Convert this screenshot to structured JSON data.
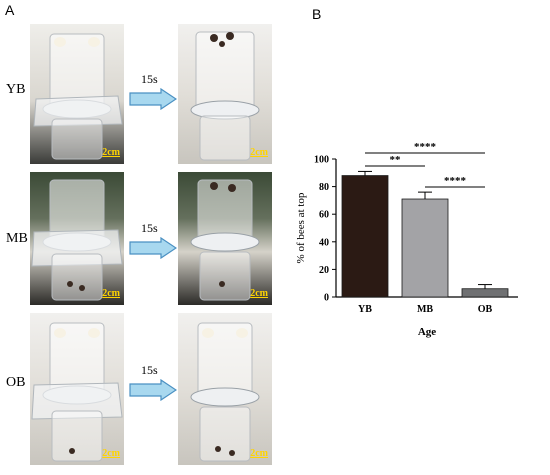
{
  "panels": {
    "left_letter": "A",
    "right_letter": "B"
  },
  "rows": [
    {
      "label": "YB",
      "time": "15s",
      "scale_before": "2cm",
      "scale_after": "2cm"
    },
    {
      "label": "MB",
      "time": "15s",
      "scale_before": "2cm",
      "scale_after": "2cm"
    },
    {
      "label": "OB",
      "time": "15s",
      "scale_before": "2cm",
      "scale_after": "2cm"
    }
  ],
  "colors": {
    "arrow_fill": "#a8d8ef",
    "arrow_stroke": "#4a90c2",
    "scale_text": "#ffd400",
    "bar_YB": "#2b1a14",
    "bar_MB": "#a3a3a6",
    "bar_OB": "#6f7072"
  },
  "chart_data": {
    "type": "bar",
    "xlabel": "Age",
    "ylabel": "% of bees at top",
    "ylim": [
      0,
      100
    ],
    "yticks": [
      0,
      20,
      40,
      60,
      80,
      100
    ],
    "categories": [
      "YB",
      "MB",
      "OB"
    ],
    "values": [
      88,
      71,
      6
    ],
    "errors": [
      3,
      5,
      3
    ],
    "significance": [
      {
        "from": "YB",
        "to": "MB",
        "label": "**"
      },
      {
        "from": "MB",
        "to": "OB",
        "label": "****"
      },
      {
        "from": "YB",
        "to": "OB",
        "label": "****"
      }
    ]
  }
}
